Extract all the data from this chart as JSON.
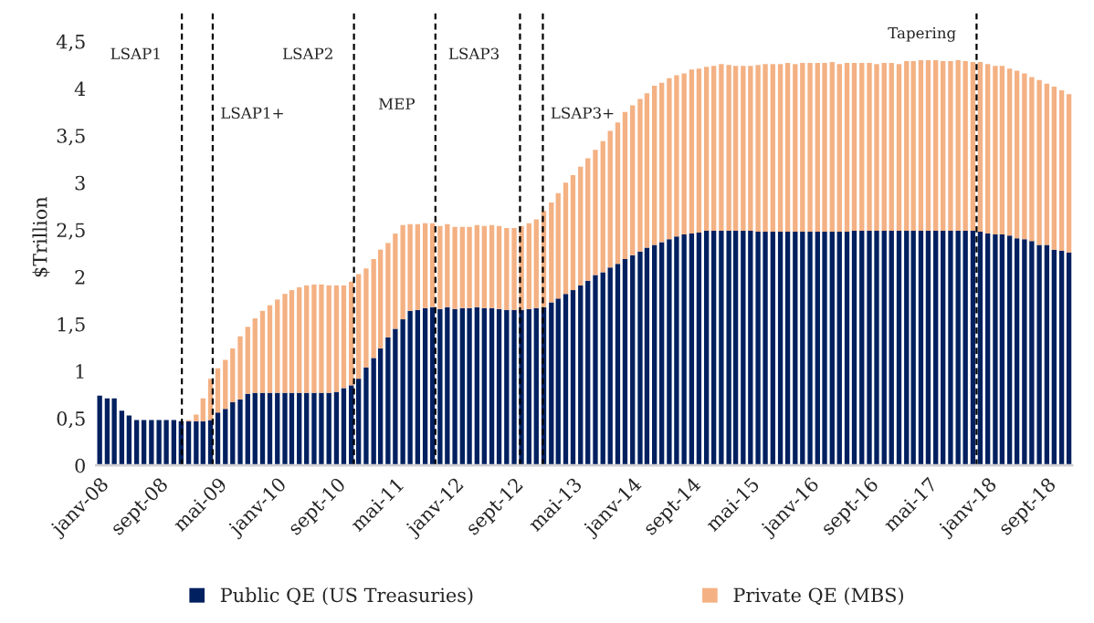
{
  "chart_data": {
    "type": "bar",
    "stacked": true,
    "ylabel": "$Trillion",
    "x": [
      "2008-01",
      "2008-02",
      "2008-03",
      "2008-04",
      "2008-05",
      "2008-06",
      "2008-07",
      "2008-08",
      "2008-09",
      "2008-10",
      "2008-11",
      "2008-12",
      "2009-01",
      "2009-02",
      "2009-03",
      "2009-04",
      "2009-05",
      "2009-06",
      "2009-07",
      "2009-08",
      "2009-09",
      "2009-10",
      "2009-11",
      "2009-12",
      "2010-01",
      "2010-02",
      "2010-03",
      "2010-04",
      "2010-05",
      "2010-06",
      "2010-07",
      "2010-08",
      "2010-09",
      "2010-10",
      "2010-11",
      "2010-12",
      "2011-01",
      "2011-02",
      "2011-03",
      "2011-04",
      "2011-05",
      "2011-06",
      "2011-07",
      "2011-08",
      "2011-09",
      "2011-10",
      "2011-11",
      "2011-12",
      "2012-01",
      "2012-02",
      "2012-03",
      "2012-04",
      "2012-05",
      "2012-06",
      "2012-07",
      "2012-08",
      "2012-09",
      "2012-10",
      "2012-11",
      "2012-12",
      "2013-01",
      "2013-02",
      "2013-03",
      "2013-04",
      "2013-05",
      "2013-06",
      "2013-07",
      "2013-08",
      "2013-09",
      "2013-10",
      "2013-11",
      "2013-12",
      "2014-01",
      "2014-02",
      "2014-03",
      "2014-04",
      "2014-05",
      "2014-06",
      "2014-07",
      "2014-08",
      "2014-09",
      "2014-10",
      "2014-11",
      "2014-12",
      "2015-01",
      "2015-02",
      "2015-03",
      "2015-04",
      "2015-05",
      "2015-06",
      "2015-07",
      "2015-08",
      "2015-09",
      "2015-10",
      "2015-11",
      "2015-12",
      "2016-01",
      "2016-02",
      "2016-03",
      "2016-04",
      "2016-05",
      "2016-06",
      "2016-07",
      "2016-08",
      "2016-09",
      "2016-10",
      "2016-11",
      "2016-12",
      "2017-01",
      "2017-02",
      "2017-03",
      "2017-04",
      "2017-05",
      "2017-06",
      "2017-07",
      "2017-08",
      "2017-09",
      "2017-10",
      "2017-11",
      "2017-12",
      "2018-01",
      "2018-02",
      "2018-03",
      "2018-04",
      "2018-05",
      "2018-06",
      "2018-07",
      "2018-08",
      "2018-09",
      "2018-10",
      "2018-11",
      "2018-12"
    ],
    "xlim": [
      "2007-12-18",
      "2018-12-14"
    ],
    "xticks": [
      {
        "value": "2008-01",
        "label": "janv-08"
      },
      {
        "value": "2008-09",
        "label": "sept-08"
      },
      {
        "value": "2009-05",
        "label": "mai-09"
      },
      {
        "value": "2010-01",
        "label": "janv-10"
      },
      {
        "value": "2010-09",
        "label": "sept-10"
      },
      {
        "value": "2011-05",
        "label": "mai-11"
      },
      {
        "value": "2012-01",
        "label": "janv-12"
      },
      {
        "value": "2012-09",
        "label": "sept-12"
      },
      {
        "value": "2013-05",
        "label": "mai-13"
      },
      {
        "value": "2014-01",
        "label": "janv-14"
      },
      {
        "value": "2014-09",
        "label": "sept-14"
      },
      {
        "value": "2015-05",
        "label": "mai-15"
      },
      {
        "value": "2016-01",
        "label": "janv-16"
      },
      {
        "value": "2016-09",
        "label": "sept-16"
      },
      {
        "value": "2017-05",
        "label": "mai-17"
      },
      {
        "value": "2018-01",
        "label": "janv-18"
      },
      {
        "value": "2018-09",
        "label": "sept-18"
      }
    ],
    "ylim": [
      0,
      4.84
    ],
    "yticks": [
      0,
      {
        "value": 0.5,
        "label": "0,5"
      },
      1,
      {
        "value": 1.5,
        "label": "1,5"
      },
      2,
      {
        "value": 2.5,
        "label": "2,5"
      },
      3,
      {
        "value": 3.5,
        "label": "3,5"
      },
      4,
      {
        "value": 4.5,
        "label": "4,5"
      }
    ],
    "series": [
      {
        "name": "Public QE (US Treasuries)",
        "color": "#002060",
        "values": [
          0.74,
          0.71,
          0.71,
          0.58,
          0.53,
          0.48,
          0.48,
          0.48,
          0.48,
          0.48,
          0.48,
          0.47,
          0.47,
          0.47,
          0.47,
          0.48,
          0.56,
          0.6,
          0.67,
          0.7,
          0.76,
          0.77,
          0.77,
          0.77,
          0.77,
          0.77,
          0.77,
          0.77,
          0.77,
          0.77,
          0.77,
          0.77,
          0.78,
          0.82,
          0.85,
          0.92,
          1.04,
          1.14,
          1.24,
          1.36,
          1.45,
          1.55,
          1.64,
          1.65,
          1.67,
          1.68,
          1.66,
          1.68,
          1.66,
          1.67,
          1.67,
          1.68,
          1.67,
          1.67,
          1.66,
          1.65,
          1.65,
          1.65,
          1.66,
          1.67,
          1.68,
          1.73,
          1.77,
          1.82,
          1.86,
          1.91,
          1.96,
          2.02,
          2.05,
          2.1,
          2.14,
          2.19,
          2.23,
          2.27,
          2.31,
          2.34,
          2.37,
          2.4,
          2.43,
          2.45,
          2.46,
          2.47,
          2.49,
          2.49,
          2.49,
          2.49,
          2.49,
          2.49,
          2.49,
          2.48,
          2.48,
          2.48,
          2.48,
          2.48,
          2.48,
          2.48,
          2.48,
          2.48,
          2.48,
          2.48,
          2.48,
          2.48,
          2.49,
          2.49,
          2.49,
          2.49,
          2.49,
          2.49,
          2.49,
          2.49,
          2.49,
          2.49,
          2.49,
          2.49,
          2.49,
          2.49,
          2.49,
          2.49,
          2.49,
          2.48,
          2.46,
          2.45,
          2.45,
          2.44,
          2.41,
          2.4,
          2.38,
          2.34,
          2.34,
          2.29,
          2.28,
          2.26
        ]
      },
      {
        "name": "Private QE (MBS)",
        "color": "#f4b183",
        "values": [
          0,
          0,
          0,
          0,
          0,
          0,
          0,
          0,
          0,
          0,
          0,
          0,
          0.01,
          0.07,
          0.24,
          0.44,
          0.47,
          0.52,
          0.57,
          0.67,
          0.71,
          0.79,
          0.87,
          0.93,
          0.99,
          1.05,
          1.09,
          1.12,
          1.14,
          1.15,
          1.15,
          1.14,
          1.13,
          1.09,
          1.1,
          1.11,
          1.05,
          1.05,
          1.05,
          1.0,
          1.01,
          1.0,
          0.92,
          0.91,
          0.9,
          0.89,
          0.88,
          0.88,
          0.87,
          0.86,
          0.86,
          0.87,
          0.87,
          0.88,
          0.88,
          0.87,
          0.87,
          0.89,
          0.91,
          0.94,
          1.02,
          1.06,
          1.12,
          1.18,
          1.22,
          1.26,
          1.3,
          1.33,
          1.39,
          1.45,
          1.5,
          1.56,
          1.59,
          1.62,
          1.64,
          1.69,
          1.69,
          1.71,
          1.71,
          1.71,
          1.74,
          1.74,
          1.74,
          1.75,
          1.77,
          1.76,
          1.75,
          1.75,
          1.75,
          1.77,
          1.78,
          1.78,
          1.78,
          1.79,
          1.78,
          1.79,
          1.79,
          1.79,
          1.79,
          1.8,
          1.78,
          1.79,
          1.78,
          1.78,
          1.78,
          1.77,
          1.78,
          1.78,
          1.77,
          1.8,
          1.8,
          1.81,
          1.81,
          1.81,
          1.8,
          1.8,
          1.81,
          1.8,
          1.79,
          1.8,
          1.8,
          1.79,
          1.79,
          1.77,
          1.78,
          1.76,
          1.74,
          1.75,
          1.71,
          1.73,
          1.7,
          1.68
        ]
      }
    ],
    "ref_lines": [
      {
        "axis": "x",
        "value": "2008-12-04",
        "color": "#000000",
        "line_style": "dashed",
        "label": "LSAP1"
      },
      {
        "axis": "x",
        "value": "2009-04-10",
        "color": "#000000",
        "line_style": "dashed",
        "label": "LSAP1+"
      },
      {
        "axis": "x",
        "value": "2010-11-12",
        "color": "#000000",
        "line_style": "dashed",
        "label": "LSAP2"
      },
      {
        "axis": "x",
        "value": "2011-10-13",
        "color": "#000000",
        "line_style": "dashed",
        "label": "MEP"
      },
      {
        "axis": "x",
        "value": "2012-09-25",
        "color": "#000000",
        "line_style": "dashed",
        "label": "LSAP3"
      },
      {
        "axis": "x",
        "value": "2012-12-28",
        "color": "#000000",
        "line_style": "dashed",
        "label": "LSAP3+"
      },
      {
        "axis": "x",
        "value": "2017-11-16",
        "color": "#000000",
        "line_style": "dashed",
        "label": "Tapering"
      }
    ],
    "legend": "bottom"
  }
}
